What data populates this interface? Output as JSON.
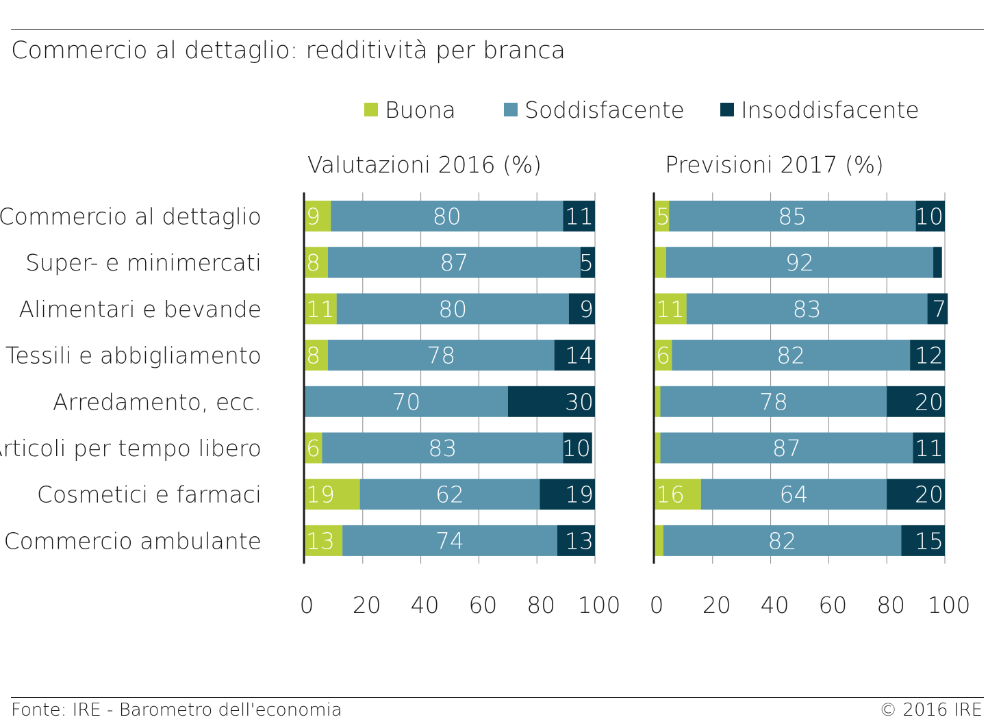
{
  "title": "Commercio al dettaglio: redditività per branca",
  "source": "Fonte: IRE - Barometro dell'economia",
  "copyright": "© 2016 IRE",
  "legend": [
    {
      "label": "Buona",
      "color": "#b8cf3c"
    },
    {
      "label": "Soddisfacente",
      "color": "#5a94ad"
    },
    {
      "label": "Insoddisfacente",
      "color": "#063a4e"
    }
  ],
  "chart_data": {
    "type": "bar",
    "orientation": "horizontal",
    "stacked": true,
    "categories": [
      "Commercio al dettaglio",
      "Super- e minimercati",
      "Alimentari e bevande",
      "Tessili e abbigliamento",
      "Arredamento, ecc.",
      "Articoli per tempo libero",
      "Cosmetici e farmaci",
      "Commercio ambulante"
    ],
    "xlim": [
      0,
      100
    ],
    "xticks": [
      0,
      20,
      40,
      60,
      80,
      100
    ],
    "legend_position": "top",
    "panels": [
      {
        "title": "Valutazioni 2016 (%)",
        "series": [
          {
            "name": "Buona",
            "values": [
              9,
              8,
              11,
              8,
              0,
              6,
              19,
              13
            ]
          },
          {
            "name": "Soddisfacente",
            "values": [
              80,
              87,
              80,
              78,
              70,
              83,
              62,
              74
            ]
          },
          {
            "name": "Insoddisfacente",
            "values": [
              11,
              5,
              9,
              14,
              30,
              10,
              19,
              13
            ]
          }
        ],
        "labels": [
          [
            "9",
            "80",
            "11"
          ],
          [
            "8",
            "87",
            "5"
          ],
          [
            "11",
            "80",
            "9"
          ],
          [
            "8",
            "78",
            "14"
          ],
          [
            "",
            "70",
            "30"
          ],
          [
            "6",
            "83",
            "10"
          ],
          [
            "19",
            "62",
            "19"
          ],
          [
            "13",
            "74",
            "13"
          ]
        ]
      },
      {
        "title": "Previsioni 2017 (%)",
        "series": [
          {
            "name": "Buona",
            "values": [
              5,
              4,
              11,
              6,
              2,
              2,
              16,
              3
            ]
          },
          {
            "name": "Soddisfacente",
            "values": [
              85,
              92,
              83,
              82,
              78,
              87,
              64,
              82
            ]
          },
          {
            "name": "Insoddisfacente",
            "values": [
              10,
              3,
              7,
              12,
              20,
              11,
              20,
              15
            ]
          }
        ],
        "labels": [
          [
            "5",
            "85",
            "10"
          ],
          [
            "",
            "92",
            ""
          ],
          [
            "11",
            "83",
            "7"
          ],
          [
            "6",
            "82",
            "12"
          ],
          [
            "",
            "78",
            "20"
          ],
          [
            "",
            "87",
            "11"
          ],
          [
            "16",
            "64",
            "20"
          ],
          [
            "",
            "82",
            "15"
          ]
        ]
      }
    ]
  }
}
